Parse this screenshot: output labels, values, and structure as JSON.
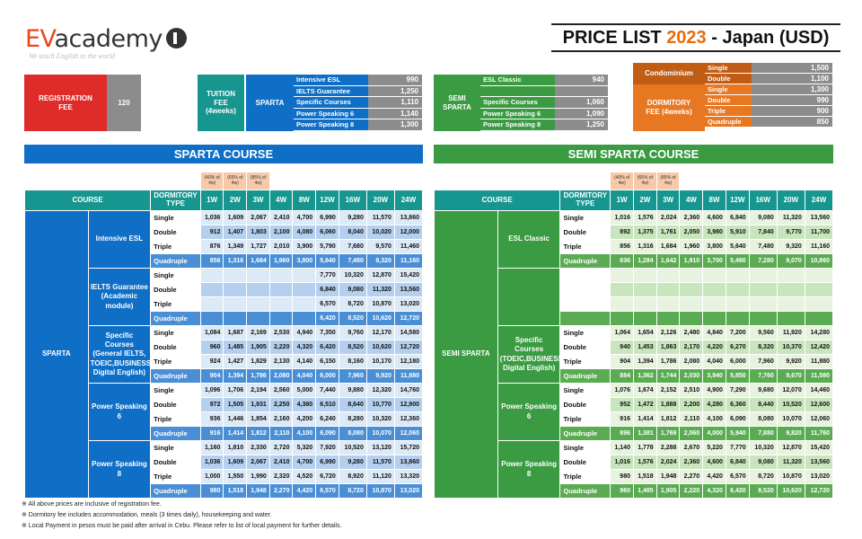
{
  "logo": {
    "ev": "EV",
    "academy": "academy",
    "tagline": "We teach English to the world"
  },
  "title": {
    "pre": "PRICE LIST ",
    "year": "2023",
    "post": " - Japan (USD)"
  },
  "registration": {
    "label": "REGISTRATION FEE",
    "value": "120"
  },
  "tuition": {
    "label": "TUITION FEE (4weeks)",
    "sparta": "SPARTA",
    "semi": "SEMI SPARTA",
    "sparta_items": [
      {
        "name": "Intensive ESL",
        "price": "990"
      },
      {
        "name": "IELTS Guarantee",
        "price": "1,250"
      },
      {
        "name": "Specific Courses",
        "price": "1,110"
      },
      {
        "name": "Power Speaking 6",
        "price": "1,140"
      },
      {
        "name": "Power Speaking 8",
        "price": "1,300"
      }
    ],
    "semi_items": [
      {
        "name": "ESL Classic",
        "price": "940"
      },
      {
        "name": "",
        "price": ""
      },
      {
        "name": "Specific Courses",
        "price": "1,060"
      },
      {
        "name": "Power Speaking 6",
        "price": "1,090"
      },
      {
        "name": "Power Speaking 8",
        "price": "1,250"
      }
    ]
  },
  "condominium": {
    "label": "Condominium",
    "rows": [
      {
        "type": "Single",
        "price": "1,500"
      },
      {
        "type": "Double",
        "price": "1,100"
      }
    ]
  },
  "dormitory": {
    "label": "DORMITORY FEE (4weeks)",
    "rows": [
      {
        "type": "Single",
        "price": "1,300"
      },
      {
        "type": "Double",
        "price": "990"
      },
      {
        "type": "Triple",
        "price": "900"
      },
      {
        "type": "Quadruple",
        "price": "850"
      }
    ]
  },
  "sparta_course": {
    "title": "SPARTA COURSE"
  },
  "semi_course": {
    "title": "SEMI SPARTA COURSE"
  },
  "table_headers": {
    "course": "COURSE",
    "dorm": "DORMITORY TYPE",
    "weeks": [
      "1W",
      "2W",
      "3W",
      "4W",
      "8W",
      "12W",
      "16W",
      "20W",
      "24W"
    ],
    "discounts": [
      "(40% of 4w)",
      "(65% of 4w)",
      "(85% of 4w)"
    ]
  },
  "sparta_table": {
    "group": "SPARTA",
    "courses": [
      {
        "name": "Intensive ESL",
        "rows": [
          {
            "type": "Single",
            "vals": [
              "1,036",
              "1,609",
              "2,067",
              "2,410",
              "4,700",
              "6,990",
              "9,280",
              "11,570",
              "13,860"
            ]
          },
          {
            "type": "Double",
            "vals": [
              "912",
              "1,407",
              "1,803",
              "2,100",
              "4,080",
              "6,060",
              "8,040",
              "10,020",
              "12,000"
            ]
          },
          {
            "type": "Triple",
            "vals": [
              "876",
              "1,349",
              "1,727",
              "2,010",
              "3,900",
              "5,790",
              "7,680",
              "9,570",
              "11,460"
            ]
          },
          {
            "type": "Quadruple",
            "vals": [
              "856",
              "1,316",
              "1,684",
              "1,960",
              "3,800",
              "5,640",
              "7,480",
              "9,320",
              "11,160"
            ]
          }
        ]
      },
      {
        "name": "IELTS Guarantee (Academic module)",
        "rows": [
          {
            "type": "Single",
            "vals": [
              "",
              "",
              "",
              "",
              "",
              "7,770",
              "10,320",
              "12,870",
              "15,420"
            ]
          },
          {
            "type": "Double",
            "vals": [
              "",
              "",
              "",
              "",
              "",
              "6,840",
              "9,080",
              "11,320",
              "13,560"
            ]
          },
          {
            "type": "Triple",
            "vals": [
              "",
              "",
              "",
              "",
              "",
              "6,570",
              "8,720",
              "10,870",
              "13,020"
            ]
          },
          {
            "type": "Quadruple",
            "vals": [
              "",
              "",
              "",
              "",
              "",
              "6,420",
              "8,520",
              "10,620",
              "12,720"
            ]
          }
        ]
      },
      {
        "name": "Specific Courses (General IELTS, TOEIC,BUSINESS, Digital English)",
        "rows": [
          {
            "type": "Single",
            "vals": [
              "1,084",
              "1,687",
              "2,169",
              "2,530",
              "4,940",
              "7,350",
              "9,760",
              "12,170",
              "14,580"
            ]
          },
          {
            "type": "Double",
            "vals": [
              "960",
              "1,485",
              "1,905",
              "2,220",
              "4,320",
              "6,420",
              "8,520",
              "10,620",
              "12,720"
            ]
          },
          {
            "type": "Triple",
            "vals": [
              "924",
              "1,427",
              "1,829",
              "2,130",
              "4,140",
              "6,150",
              "8,160",
              "10,170",
              "12,180"
            ]
          },
          {
            "type": "Quadruple",
            "vals": [
              "904",
              "1,394",
              "1,786",
              "2,080",
              "4,040",
              "6,000",
              "7,960",
              "9,920",
              "11,880"
            ]
          }
        ]
      },
      {
        "name": "Power Speaking 6",
        "rows": [
          {
            "type": "Single",
            "vals": [
              "1,096",
              "1,706",
              "2,194",
              "2,560",
              "5,000",
              "7,440",
              "9,880",
              "12,320",
              "14,760"
            ]
          },
          {
            "type": "Double",
            "vals": [
              "972",
              "1,505",
              "1,931",
              "2,250",
              "4,380",
              "6,510",
              "8,640",
              "10,770",
              "12,900"
            ]
          },
          {
            "type": "Triple",
            "vals": [
              "936",
              "1,446",
              "1,854",
              "2,160",
              "4,200",
              "6,240",
              "8,280",
              "10,320",
              "12,360"
            ]
          },
          {
            "type": "Quadruple",
            "vals": [
              "916",
              "1,414",
              "1,812",
              "2,110",
              "4,100",
              "6,090",
              "8,080",
              "10,070",
              "12,060"
            ]
          }
        ]
      },
      {
        "name": "Power Speaking 8",
        "rows": [
          {
            "type": "Single",
            "vals": [
              "1,160",
              "1,810",
              "2,330",
              "2,720",
              "5,320",
              "7,920",
              "10,520",
              "13,120",
              "15,720"
            ]
          },
          {
            "type": "Double",
            "vals": [
              "1,036",
              "1,609",
              "2,067",
              "2,410",
              "4,700",
              "6,990",
              "9,280",
              "11,570",
              "13,860"
            ]
          },
          {
            "type": "Triple",
            "vals": [
              "1,000",
              "1,550",
              "1,990",
              "2,320",
              "4,520",
              "6,720",
              "8,920",
              "11,120",
              "13,320"
            ]
          },
          {
            "type": "Quadruple",
            "vals": [
              "980",
              "1,518",
              "1,948",
              "2,270",
              "4,420",
              "6,570",
              "8,720",
              "10,870",
              "13,020"
            ]
          }
        ]
      }
    ]
  },
  "semi_table": {
    "group": "SEMI SPARTA",
    "courses": [
      {
        "name": "ESL Classic",
        "rows": [
          {
            "type": "Single",
            "vals": [
              "1,016",
              "1,576",
              "2,024",
              "2,360",
              "4,600",
              "6,840",
              "9,080",
              "11,320",
              "13,560"
            ]
          },
          {
            "type": "Double",
            "vals": [
              "892",
              "1,375",
              "1,761",
              "2,050",
              "3,980",
              "5,910",
              "7,840",
              "9,770",
              "11,700"
            ]
          },
          {
            "type": "Triple",
            "vals": [
              "856",
              "1,316",
              "1,684",
              "1,960",
              "3,800",
              "5,640",
              "7,480",
              "9,320",
              "11,160"
            ]
          },
          {
            "type": "Quadruple",
            "vals": [
              "836",
              "1,284",
              "1,642",
              "1,910",
              "3,700",
              "5,490",
              "7,280",
              "9,070",
              "10,860"
            ]
          }
        ]
      },
      {
        "name": "",
        "rows": [
          {
            "type": "",
            "vals": [
              "",
              "",
              "",
              "",
              "",
              "",
              "",
              "",
              ""
            ]
          },
          {
            "type": "",
            "vals": [
              "",
              "",
              "",
              "",
              "",
              "",
              "",
              "",
              ""
            ]
          },
          {
            "type": "",
            "vals": [
              "",
              "",
              "",
              "",
              "",
              "",
              "",
              "",
              ""
            ]
          },
          {
            "type": "",
            "vals": [
              "",
              "",
              "",
              "",
              "",
              "",
              "",
              "",
              ""
            ]
          }
        ]
      },
      {
        "name": "Specific Courses (TOEIC,BUSINESS, Digital English)",
        "rows": [
          {
            "type": "Single",
            "vals": [
              "1,064",
              "1,654",
              "2,126",
              "2,480",
              "4,840",
              "7,200",
              "9,560",
              "11,920",
              "14,280"
            ]
          },
          {
            "type": "Double",
            "vals": [
              "940",
              "1,453",
              "1,863",
              "2,170",
              "4,220",
              "6,270",
              "8,320",
              "10,370",
              "12,420"
            ]
          },
          {
            "type": "Triple",
            "vals": [
              "904",
              "1,394",
              "1,786",
              "2,080",
              "4,040",
              "6,000",
              "7,960",
              "9,920",
              "11,880"
            ]
          },
          {
            "type": "Quadruple",
            "vals": [
              "884",
              "1,362",
              "1,744",
              "2,030",
              "3,940",
              "5,850",
              "7,760",
              "9,670",
              "11,580"
            ]
          }
        ]
      },
      {
        "name": "Power Speaking 6",
        "rows": [
          {
            "type": "Single",
            "vals": [
              "1,076",
              "1,674",
              "2,152",
              "2,510",
              "4,900",
              "7,290",
              "9,680",
              "12,070",
              "14,460"
            ]
          },
          {
            "type": "Double",
            "vals": [
              "952",
              "1,472",
              "1,888",
              "2,200",
              "4,280",
              "6,360",
              "8,440",
              "10,520",
              "12,600"
            ]
          },
          {
            "type": "Triple",
            "vals": [
              "916",
              "1,414",
              "1,812",
              "2,110",
              "4,100",
              "6,090",
              "8,080",
              "10,070",
              "12,060"
            ]
          },
          {
            "type": "Quadruple",
            "vals": [
              "896",
              "1,381",
              "1,769",
              "2,060",
              "4,000",
              "5,940",
              "7,880",
              "9,820",
              "11,760"
            ]
          }
        ]
      },
      {
        "name": "Power Speaking 8",
        "rows": [
          {
            "type": "Single",
            "vals": [
              "1,140",
              "1,778",
              "2,288",
              "2,670",
              "5,220",
              "7,770",
              "10,320",
              "12,870",
              "15,420"
            ]
          },
          {
            "type": "Double",
            "vals": [
              "1,016",
              "1,576",
              "2,024",
              "2,360",
              "4,600",
              "6,840",
              "9,080",
              "11,320",
              "13,560"
            ]
          },
          {
            "type": "Triple",
            "vals": [
              "980",
              "1,518",
              "1,948",
              "2,270",
              "4,420",
              "6,570",
              "8,720",
              "10,870",
              "13,020"
            ]
          },
          {
            "type": "Quadruple",
            "vals": [
              "960",
              "1,485",
              "1,905",
              "2,220",
              "4,320",
              "6,420",
              "8,520",
              "10,620",
              "12,720"
            ]
          }
        ]
      }
    ]
  },
  "notes": [
    "※ All above prices are inclusive of registration fee.",
    "※ Dormitory fee includes accommodation, meals (3 times daily), housekeeping and water.",
    "※ Local Payment in pesos must be paid after arrival in Cebu. Please refer to list of local payment for further details."
  ],
  "colors": {
    "blue": "#0f6fc6",
    "blue_light": "#dce9f6",
    "blue_mid": "#b4d0ee",
    "blue_dark": "#4a8fd6",
    "teal": "#16968f",
    "red": "#e02b2b",
    "green": "#3a9b42",
    "green_light": "#e7f3df",
    "green_mid": "#c8e5bd",
    "green_dark": "#5aab52",
    "orange": "#c05c14",
    "grey": "#8c8c8c"
  }
}
